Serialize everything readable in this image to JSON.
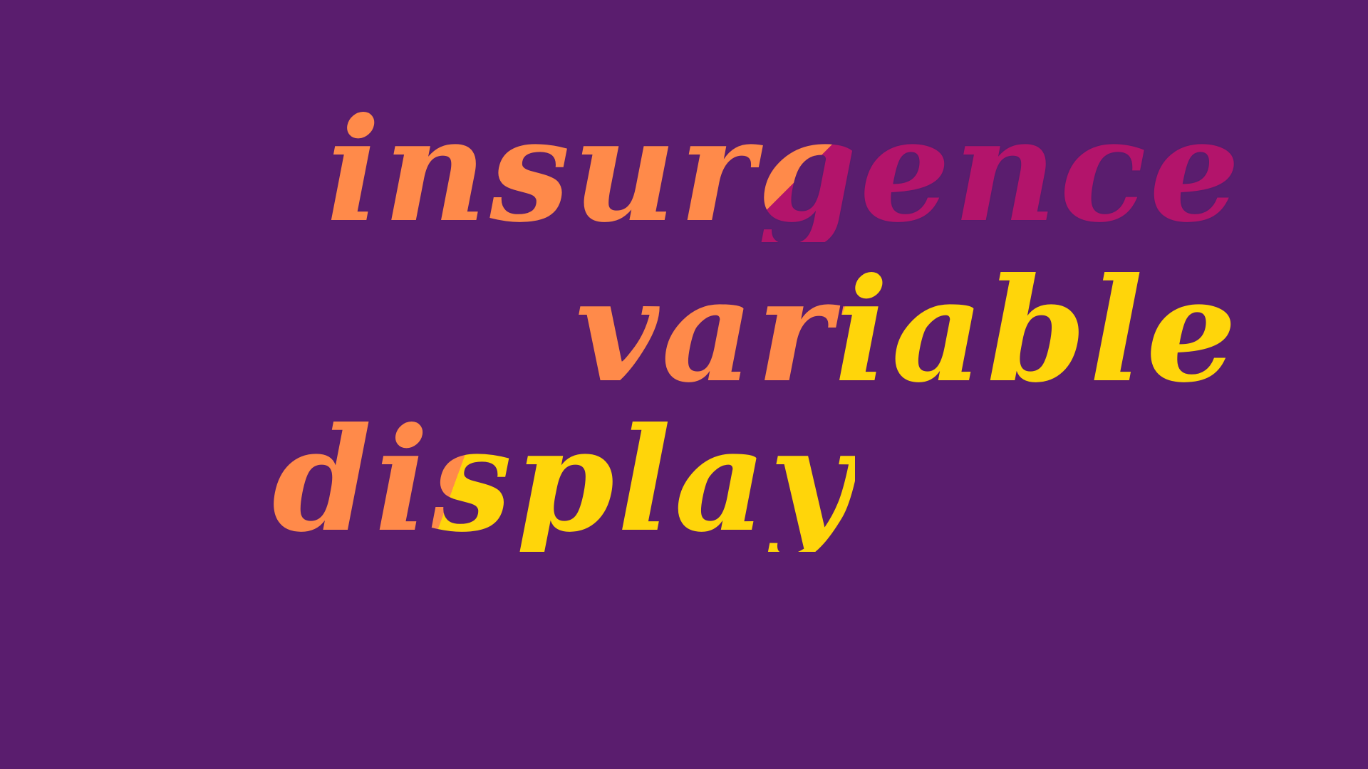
{
  "words": {
    "first": "insurgence",
    "second": "variable",
    "third": "display"
  },
  "colors": {
    "background": "#5a1d6e",
    "orange": "#ff8a4a",
    "magenta": "#b3146b",
    "yellow": "#ffd50a"
  }
}
